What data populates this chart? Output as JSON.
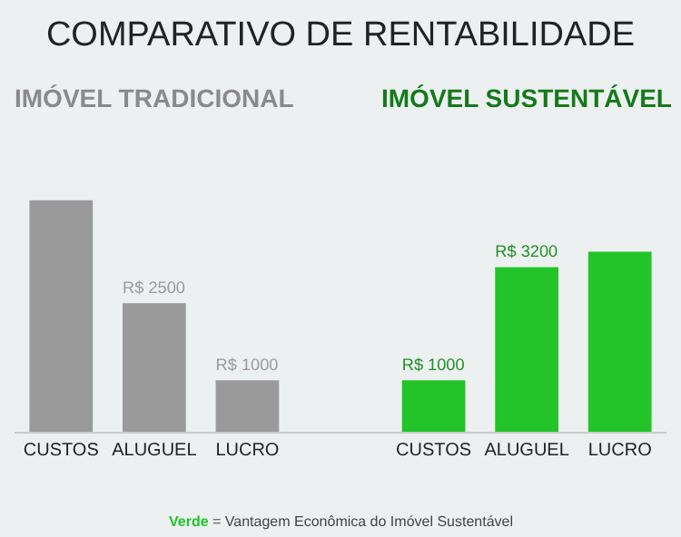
{
  "chart_data": {
    "type": "bar",
    "title": "COMPARATIVO DE RENTABILIDADE",
    "categories": [
      "CUSTOS",
      "ALUGUEL",
      "LUCRO",
      null,
      "CUSTOS",
      "ALUGUEL",
      "LUCRO"
    ],
    "values": [
      4500,
      2500,
      1000,
      null,
      1000,
      3200,
      3500
    ],
    "colors": [
      "#9a9a9a",
      "#9a9a9a",
      "#9a9a9a",
      "#9a9a9a",
      "#22c42a",
      "#22c42a",
      "#22c42a"
    ],
    "value_labels": [
      null,
      "R$ 2500",
      "R$ 1000",
      null,
      "R$ 1000",
      "R$ 3200",
      null
    ],
    "annotations": [
      "IMÓVEL TRADICIONAL",
      "IMÓVEL SUSTENTÁVEL",
      "Verde = Vantagem Econômica do Imóvel Sustentável"
    ],
    "grid": false,
    "legend": false
  }
}
